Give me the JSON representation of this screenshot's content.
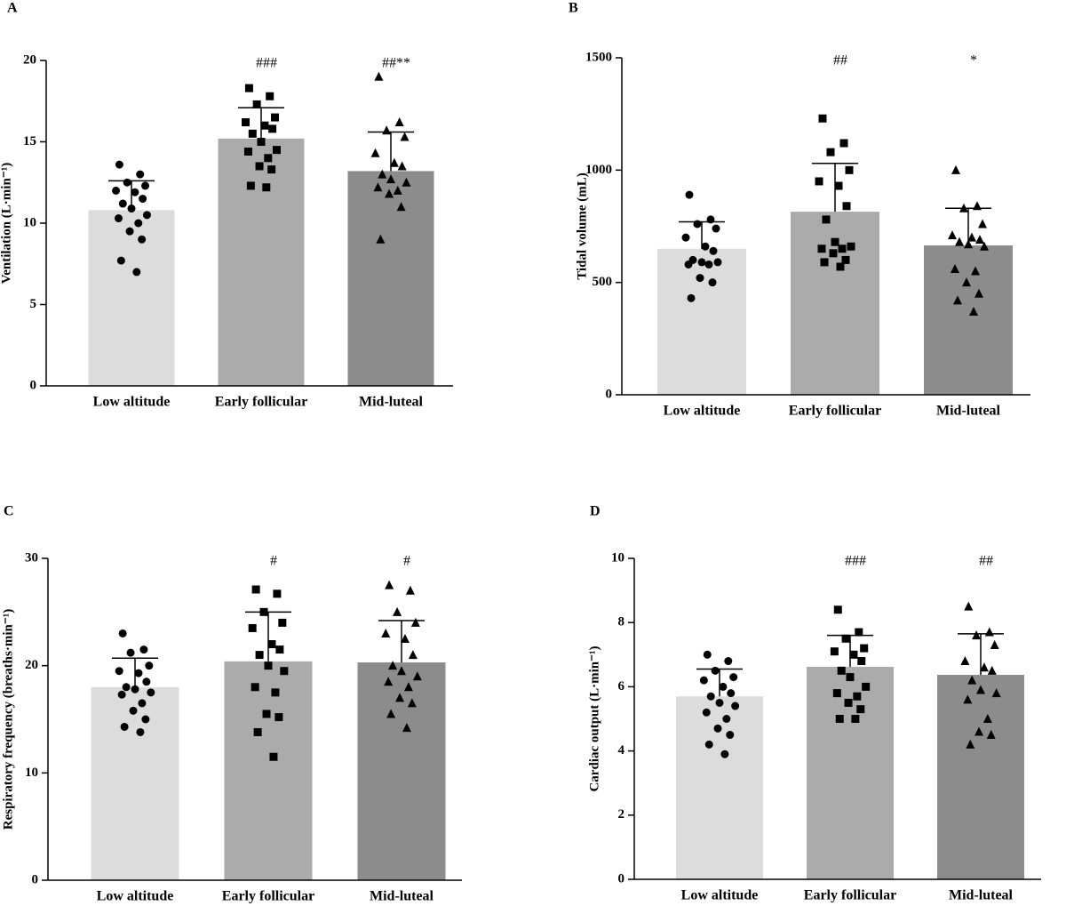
{
  "chart_data": [
    {
      "type": "bar",
      "panel": "A",
      "ylabel": "Ventilation (L·min⁻¹)",
      "categories": [
        "Low altitude",
        "Early follicular",
        "Mid-luteal"
      ],
      "values": [
        10.8,
        15.2,
        13.2
      ],
      "errors": [
        1.8,
        1.9,
        2.4
      ],
      "colors": [
        "#dcdcdc",
        "#ababab",
        "#8c8c8c"
      ],
      "markers": [
        "circle",
        "square",
        "triangle"
      ],
      "annotations": [
        null,
        "###",
        "##**"
      ],
      "points": [
        [
          13.6,
          13.0,
          12.5,
          12.3,
          12.0,
          11.9,
          11.5,
          11.2,
          10.9,
          10.5,
          10.3,
          10.0,
          9.5,
          9.0,
          7.7,
          7.0
        ],
        [
          18.3,
          17.8,
          17.3,
          16.5,
          16.2,
          16.0,
          15.8,
          15.5,
          15.0,
          14.5,
          14.4,
          14.0,
          13.5,
          13.3,
          12.3,
          12.2
        ],
        [
          19.0,
          16.2,
          15.7,
          15.3,
          14.3,
          13.7,
          13.5,
          13.0,
          12.7,
          12.5,
          12.2,
          12.0,
          11.8,
          11.0,
          9.0
        ]
      ],
      "ylim": [
        0,
        20
      ],
      "yticks": [
        0,
        5,
        10,
        15,
        20
      ]
    },
    {
      "type": "bar",
      "panel": "B",
      "ylabel": "Tidal volume (mL)",
      "categories": [
        "Low altitude",
        "Early follicular",
        "Mid-luteal"
      ],
      "values": [
        650,
        815,
        665
      ],
      "errors": [
        120,
        215,
        165
      ],
      "colors": [
        "#dcdcdc",
        "#ababab",
        "#8c8c8c"
      ],
      "markers": [
        "circle",
        "square",
        "triangle"
      ],
      "annotations": [
        null,
        "##",
        "*"
      ],
      "points": [
        [
          890,
          780,
          760,
          740,
          700,
          660,
          640,
          600,
          590,
          590,
          580,
          580,
          520,
          500,
          430
        ],
        [
          1230,
          1120,
          1080,
          1000,
          950,
          930,
          840,
          780,
          680,
          660,
          650,
          650,
          630,
          600,
          590,
          570
        ],
        [
          1000,
          840,
          830,
          760,
          710,
          700,
          690,
          680,
          670,
          660,
          560,
          550,
          500,
          450,
          420,
          370
        ]
      ],
      "ylim": [
        0,
        1500
      ],
      "yticks": [
        0,
        500,
        1000,
        1500
      ]
    },
    {
      "type": "bar",
      "panel": "C",
      "ylabel": "Respiratory frequency (breaths·min⁻¹)",
      "categories": [
        "Low altitude",
        "Early follicular",
        "Mid-luteal"
      ],
      "values": [
        18.0,
        20.4,
        20.3
      ],
      "errors": [
        2.7,
        4.6,
        3.9
      ],
      "colors": [
        "#dcdcdc",
        "#ababab",
        "#8c8c8c"
      ],
      "markers": [
        "circle",
        "square",
        "triangle"
      ],
      "annotations": [
        null,
        "#",
        "#"
      ],
      "points": [
        [
          23.0,
          21.5,
          21.2,
          20.0,
          19.5,
          19.3,
          18.5,
          18.0,
          17.8,
          17.5,
          17.3,
          16.5,
          15.8,
          15.0,
          14.3,
          13.8
        ],
        [
          27.1,
          26.7,
          25.0,
          24.0,
          23.5,
          22.0,
          21.5,
          21.0,
          20.0,
          19.5,
          18.0,
          17.5,
          15.5,
          15.2,
          13.8,
          11.5
        ],
        [
          27.5,
          27.0,
          25.0,
          24.0,
          23.0,
          22.5,
          21.0,
          20.0,
          19.5,
          19.0,
          18.5,
          18.0,
          17.0,
          16.5,
          15.5,
          14.2
        ]
      ],
      "ylim": [
        0,
        30
      ],
      "yticks": [
        0,
        10,
        20,
        30
      ]
    },
    {
      "type": "bar",
      "panel": "D",
      "ylabel": "Cardiac output (L·min⁻¹)",
      "categories": [
        "Low altitude",
        "Early follicular",
        "Mid-luteal"
      ],
      "values": [
        5.7,
        6.62,
        6.37
      ],
      "errors": [
        0.85,
        0.98,
        1.28
      ],
      "colors": [
        "#dcdcdc",
        "#ababab",
        "#8c8c8c"
      ],
      "markers": [
        "circle",
        "square",
        "triangle"
      ],
      "annotations": [
        null,
        "###",
        "##"
      ],
      "points": [
        [
          7.0,
          6.8,
          6.5,
          6.3,
          6.2,
          6.0,
          5.8,
          5.7,
          5.5,
          5.4,
          5.2,
          5.0,
          4.7,
          4.5,
          4.2,
          3.9
        ],
        [
          8.4,
          7.7,
          7.5,
          7.2,
          7.1,
          7.0,
          6.8,
          6.5,
          6.3,
          6.0,
          5.8,
          5.7,
          5.5,
          5.3,
          5.0,
          5.0
        ],
        [
          8.5,
          7.7,
          7.6,
          7.3,
          6.8,
          6.6,
          6.5,
          6.2,
          5.9,
          5.8,
          5.6,
          5.0,
          4.6,
          4.5,
          4.2
        ]
      ],
      "ylim": [
        0,
        10
      ],
      "yticks": [
        0,
        2,
        4,
        6,
        8,
        10
      ]
    }
  ]
}
